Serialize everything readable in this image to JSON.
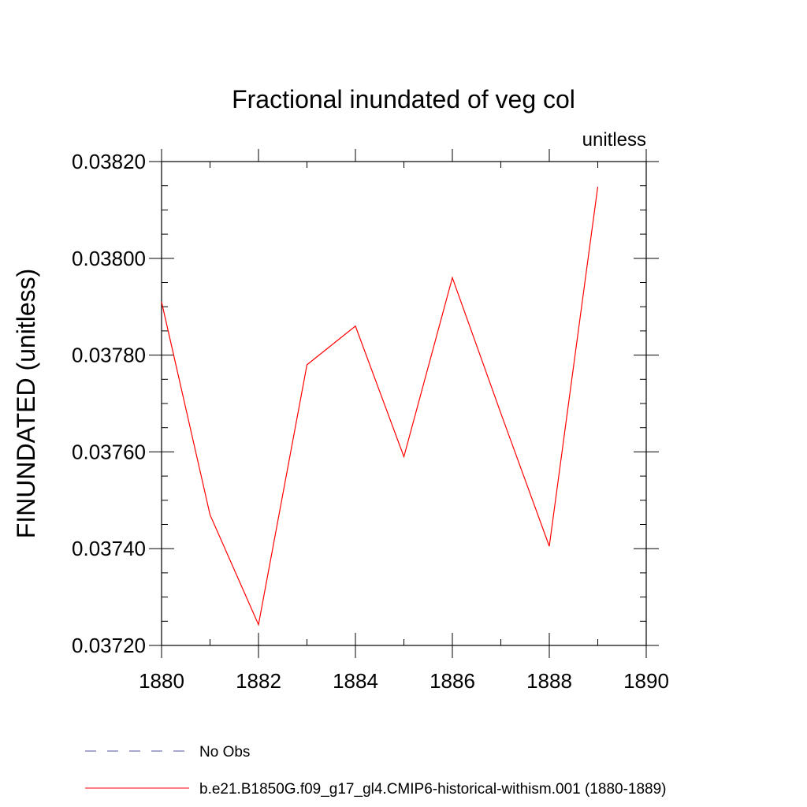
{
  "chart_data": {
    "type": "line",
    "title": "Fractional inundated of veg col",
    "units_label": "unitless",
    "ylabel": "FINUNDATED  (unitless)",
    "xlabel": "",
    "xlim": [
      1880,
      1890
    ],
    "ylim": [
      0.0372,
      0.0382
    ],
    "x_ticks": [
      1880,
      1882,
      1884,
      1886,
      1888,
      1890
    ],
    "x_tick_labels": [
      "1880",
      "1882",
      "1884",
      "1886",
      "1888",
      "1890"
    ],
    "y_ticks": [
      0.0372,
      0.0374,
      0.0376,
      0.0378,
      0.038,
      0.0382
    ],
    "y_tick_labels": [
      "0.03720",
      "0.03740",
      "0.03760",
      "0.03780",
      "0.03800",
      "0.03820"
    ],
    "grid": false,
    "legend_position": "bottom",
    "series": [
      {
        "name": "b.e21.B1850G.f09_g17_gl4.CMIP6-historical-withism.001 (1880-1889)",
        "color": "#ff0000",
        "style": "solid",
        "x": [
          1880,
          1881,
          1882,
          1883,
          1884,
          1885,
          1886,
          1887,
          1888,
          1889
        ],
        "y": [
          0.03791,
          0.03747,
          0.037243,
          0.03778,
          0.03786,
          0.03759,
          0.03796,
          0.03768,
          0.037405,
          0.038148
        ]
      }
    ],
    "legend": [
      {
        "name": "No Obs",
        "color": "#5050a0",
        "style": "dashed"
      },
      {
        "name": "b.e21.B1850G.f09_g17_gl4.CMIP6-historical-withism.001 (1880-1889)",
        "color": "#ff0000",
        "style": "solid"
      }
    ]
  }
}
